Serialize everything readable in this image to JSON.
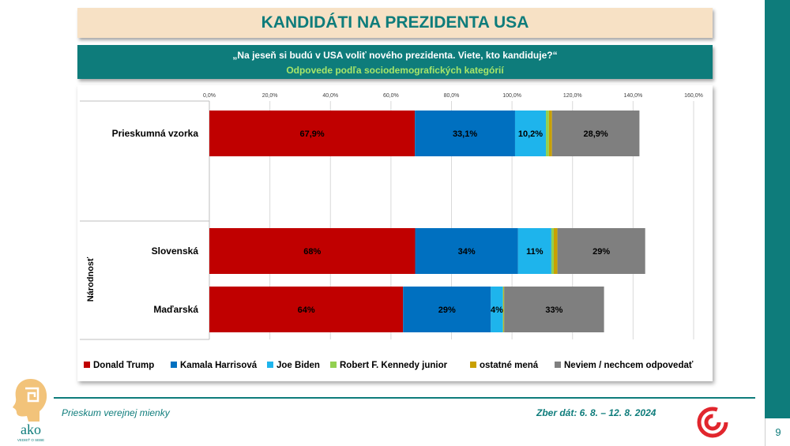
{
  "title": "KANDIDÁTI NA PREZIDENTA USA",
  "question": "„Na jeseň si budú v USA voliť nového prezidenta. Viete, kto kandiduje?“",
  "subtitle": "Odpovede podľa sociodemografických kategórií",
  "footer": {
    "survey": "Prieskum verejnej mienky",
    "date": "Zber dát: 6. 8. – 12. 8. 2024",
    "page": "9",
    "logo_text": "ako",
    "logo_subtext": "VEDIEŤ O SEBE"
  },
  "colors": {
    "accent": "#0e7c7b",
    "trump": "#c00000",
    "harris": "#0070c0",
    "biden": "#1eb4ec",
    "kennedy": "#92d050",
    "other": "#c9a000",
    "dontknow": "#7f7f7f"
  },
  "chart_data": {
    "type": "bar",
    "orientation": "horizontal",
    "stacked": true,
    "xlim": [
      0,
      160
    ],
    "x_ticks": [
      "0,0%",
      "20,0%",
      "40,0%",
      "60,0%",
      "80,0%",
      "100,0%",
      "120,0%",
      "140,0%",
      "160,0%"
    ],
    "x_tick_values": [
      0,
      20,
      40,
      60,
      80,
      100,
      120,
      140,
      160
    ],
    "grid": true,
    "legend_position": "bottom",
    "group_label": "Národnosť",
    "categories": [
      "Prieskumná vzorka",
      "Slovenská",
      "Maďarská"
    ],
    "series": [
      {
        "name": "Donald Trump",
        "color": "#c00000",
        "values": [
          67.9,
          68,
          64
        ],
        "labels": [
          "67,9%",
          "68%",
          "64%"
        ]
      },
      {
        "name": "Kamala Harrisová",
        "color": "#0070c0",
        "values": [
          33.1,
          34,
          29
        ],
        "labels": [
          "33,1%",
          "34%",
          "29%"
        ]
      },
      {
        "name": "Joe Biden",
        "color": "#1eb4ec",
        "values": [
          10.2,
          11,
          4
        ],
        "labels": [
          "10,2%",
          "11%",
          "4%"
        ]
      },
      {
        "name": "Robert F. Kennedy junior",
        "color": "#92d050",
        "values": [
          1.0,
          0.8,
          0.2
        ],
        "labels": [
          "",
          "",
          ""
        ]
      },
      {
        "name": "ostatné mená",
        "color": "#c9a000",
        "values": [
          1.0,
          1.2,
          0.2
        ],
        "labels": [
          "",
          "",
          ""
        ]
      },
      {
        "name": "Neviem / nechcem odpovedať",
        "color": "#7f7f7f",
        "values": [
          28.9,
          29,
          33
        ],
        "labels": [
          "28,9%",
          "29%",
          "33%"
        ]
      }
    ]
  }
}
